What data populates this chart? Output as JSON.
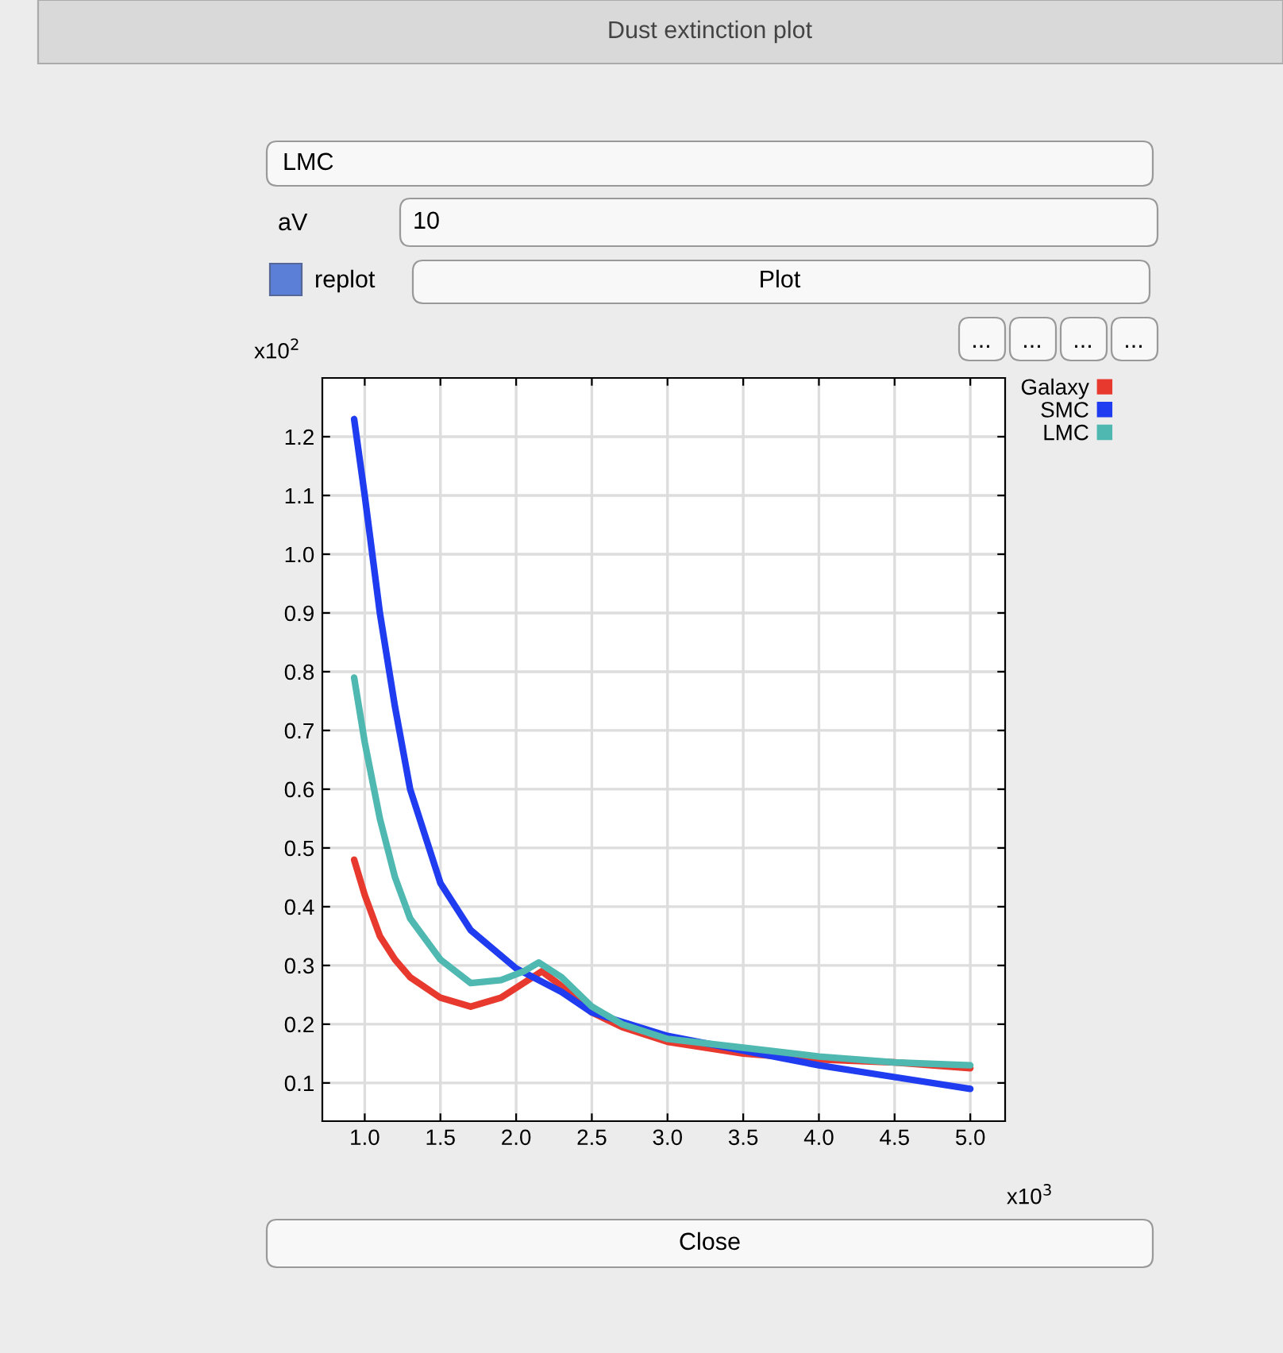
{
  "chart_data": {
    "type": "line",
    "title": "Dust extinction plot",
    "xlabel": "x10$^{3}$",
    "ylabel": "x10$^{2}$",
    "annotations": [
      "LMC",
      "aV",
      "10",
      "replot",
      "Plot",
      "...",
      "...",
      "...",
      "...",
      "Close"
    ],
    "series": [
      {
        "name": "Galaxy",
        "color": "#e8392e",
        "x": [
          0.93,
          1.0,
          1.1,
          1.2,
          1.3,
          1.5,
          1.7,
          1.9,
          2.05,
          2.17,
          2.3,
          2.5,
          2.7,
          3.0,
          3.5,
          4.0,
          4.5,
          5.0
        ],
        "values": [
          0.48,
          0.42,
          0.35,
          0.31,
          0.28,
          0.245,
          0.23,
          0.245,
          0.27,
          0.29,
          0.265,
          0.22,
          0.195,
          0.17,
          0.15,
          0.14,
          0.135,
          0.125
        ]
      },
      {
        "name": "SMC",
        "color": "#1f3cf0",
        "x": [
          0.93,
          1.0,
          1.1,
          1.2,
          1.3,
          1.5,
          1.7,
          2.0,
          2.3,
          2.5,
          3.0,
          3.5,
          4.0,
          4.5,
          5.0
        ],
        "values": [
          1.23,
          1.1,
          0.9,
          0.74,
          0.6,
          0.44,
          0.36,
          0.295,
          0.255,
          0.22,
          0.18,
          0.155,
          0.13,
          0.11,
          0.09
        ]
      },
      {
        "name": "LMC",
        "color": "#4fb8b0",
        "x": [
          0.93,
          1.0,
          1.1,
          1.2,
          1.3,
          1.5,
          1.7,
          1.9,
          2.05,
          2.15,
          2.3,
          2.5,
          2.7,
          3.0,
          3.5,
          4.0,
          4.5,
          5.0
        ],
        "values": [
          0.79,
          0.68,
          0.55,
          0.45,
          0.38,
          0.31,
          0.27,
          0.275,
          0.29,
          0.305,
          0.28,
          0.23,
          0.2,
          0.175,
          0.16,
          0.145,
          0.135,
          0.13
        ]
      }
    ],
    "xlim": [
      0.72,
      5.23
    ],
    "ylim": [
      0.035,
      1.3
    ],
    "xticks": [
      {
        "value": 1,
        "label": "1.0"
      },
      1.5,
      {
        "value": 2,
        "label": "2.0"
      },
      2.5,
      {
        "value": 3,
        "label": "3.0"
      },
      3.5,
      {
        "value": 4,
        "label": "4.0"
      },
      4.5,
      {
        "value": 5,
        "label": "5.0"
      }
    ],
    "yticks": [
      0.1,
      0.2,
      0.3,
      0.4,
      0.5,
      0.6,
      0.7,
      0.8,
      0.9,
      {
        "value": 1,
        "label": "1.0"
      },
      1.1,
      1.2
    ],
    "grid": true,
    "legend": "top right",
    "line_style": "solid"
  }
}
